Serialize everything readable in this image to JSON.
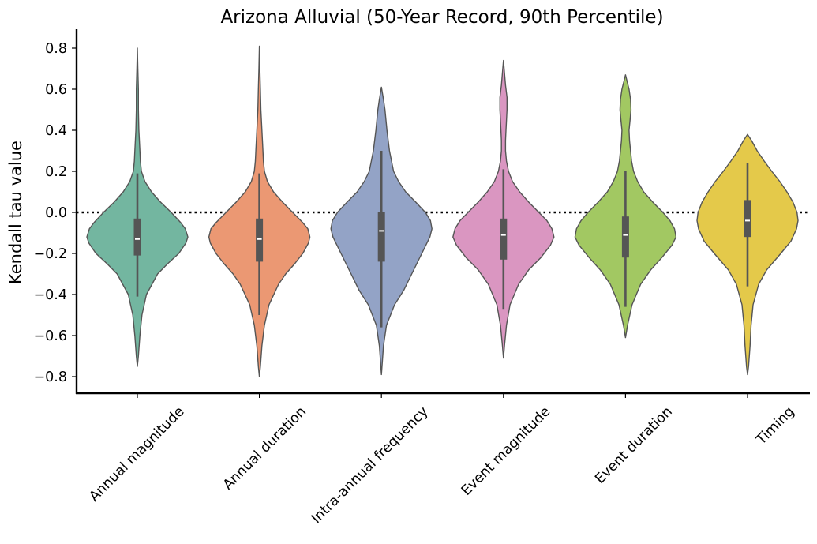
{
  "chart_data": {
    "type": "violin",
    "title": "Arizona Alluvial (50-Year Record, 90th Percentile)",
    "ylabel": "Kendall tau value",
    "xlabel": "",
    "ylim": [
      -0.88,
      0.89
    ],
    "yticks": [
      0.8,
      0.6,
      0.4,
      0.2,
      0.0,
      -0.2,
      -0.4,
      -0.6,
      -0.8
    ],
    "ytick_labels": [
      "0.8",
      "0.6",
      "0.4",
      "0.2",
      "0.0",
      "−0.2",
      "−0.4",
      "−0.6",
      "−0.8"
    ],
    "reference_line": {
      "y": 0.0,
      "style": "dotted"
    },
    "categories": [
      "Annual magnitude",
      "Annual duration",
      "Intra-annual frequency",
      "Event magnitude",
      "Event duration",
      "Timing"
    ],
    "colors": [
      "#73b6a0",
      "#eb9873",
      "#93a3c6",
      "#da96c1",
      "#a2c862",
      "#e4c94a"
    ],
    "box_color": "#555555",
    "violins": [
      {
        "min": -0.75,
        "max": 0.8,
        "whisker_low": -0.41,
        "q1": -0.21,
        "median": -0.13,
        "q3": -0.03,
        "whisker_high": 0.19,
        "profile": [
          [
            -0.75,
            0.0
          ],
          [
            -0.7,
            0.02
          ],
          [
            -0.6,
            0.05
          ],
          [
            -0.5,
            0.09
          ],
          [
            -0.4,
            0.18
          ],
          [
            -0.3,
            0.4
          ],
          [
            -0.25,
            0.6
          ],
          [
            -0.2,
            0.82
          ],
          [
            -0.15,
            0.96
          ],
          [
            -0.12,
            1.0
          ],
          [
            -0.08,
            0.95
          ],
          [
            -0.05,
            0.86
          ],
          [
            0.0,
            0.67
          ],
          [
            0.05,
            0.46
          ],
          [
            0.1,
            0.28
          ],
          [
            0.15,
            0.15
          ],
          [
            0.2,
            0.08
          ],
          [
            0.25,
            0.06
          ],
          [
            0.3,
            0.05
          ],
          [
            0.4,
            0.03
          ],
          [
            0.5,
            0.02
          ],
          [
            0.6,
            0.02
          ],
          [
            0.7,
            0.01
          ],
          [
            0.8,
            0.0
          ]
        ]
      },
      {
        "min": -0.8,
        "max": 0.81,
        "whisker_low": -0.5,
        "q1": -0.24,
        "median": -0.13,
        "q3": -0.03,
        "whisker_high": 0.19,
        "profile": [
          [
            -0.8,
            0.0
          ],
          [
            -0.75,
            0.02
          ],
          [
            -0.65,
            0.05
          ],
          [
            -0.55,
            0.1
          ],
          [
            -0.45,
            0.19
          ],
          [
            -0.35,
            0.38
          ],
          [
            -0.3,
            0.52
          ],
          [
            -0.25,
            0.7
          ],
          [
            -0.2,
            0.86
          ],
          [
            -0.15,
            0.97
          ],
          [
            -0.12,
            1.0
          ],
          [
            -0.08,
            0.96
          ],
          [
            -0.05,
            0.86
          ],
          [
            0.0,
            0.66
          ],
          [
            0.05,
            0.46
          ],
          [
            0.1,
            0.28
          ],
          [
            0.15,
            0.16
          ],
          [
            0.2,
            0.1
          ],
          [
            0.25,
            0.08
          ],
          [
            0.3,
            0.07
          ],
          [
            0.4,
            0.05
          ],
          [
            0.5,
            0.03
          ],
          [
            0.6,
            0.02
          ],
          [
            0.7,
            0.01
          ],
          [
            0.81,
            0.0
          ]
        ]
      },
      {
        "min": -0.79,
        "max": 0.61,
        "whisker_low": -0.56,
        "q1": -0.24,
        "median": -0.09,
        "q3": 0.0,
        "whisker_high": 0.3,
        "profile": [
          [
            -0.79,
            0.0
          ],
          [
            -0.72,
            0.02
          ],
          [
            -0.65,
            0.04
          ],
          [
            -0.55,
            0.1
          ],
          [
            -0.45,
            0.26
          ],
          [
            -0.38,
            0.44
          ],
          [
            -0.3,
            0.6
          ],
          [
            -0.2,
            0.8
          ],
          [
            -0.12,
            0.96
          ],
          [
            -0.08,
            1.0
          ],
          [
            -0.04,
            0.97
          ],
          [
            0.0,
            0.87
          ],
          [
            0.05,
            0.68
          ],
          [
            0.1,
            0.48
          ],
          [
            0.15,
            0.34
          ],
          [
            0.2,
            0.24
          ],
          [
            0.3,
            0.16
          ],
          [
            0.4,
            0.11
          ],
          [
            0.5,
            0.07
          ],
          [
            0.55,
            0.04
          ],
          [
            0.61,
            0.0
          ]
        ]
      },
      {
        "min": -0.71,
        "max": 0.74,
        "whisker_low": -0.47,
        "q1": -0.23,
        "median": -0.11,
        "q3": -0.03,
        "whisker_high": 0.21,
        "profile": [
          [
            -0.71,
            0.0
          ],
          [
            -0.65,
            0.02
          ],
          [
            -0.55,
            0.06
          ],
          [
            -0.45,
            0.13
          ],
          [
            -0.35,
            0.3
          ],
          [
            -0.28,
            0.5
          ],
          [
            -0.22,
            0.74
          ],
          [
            -0.16,
            0.93
          ],
          [
            -0.12,
            1.0
          ],
          [
            -0.08,
            0.96
          ],
          [
            -0.04,
            0.86
          ],
          [
            0.0,
            0.7
          ],
          [
            0.05,
            0.5
          ],
          [
            0.1,
            0.32
          ],
          [
            0.15,
            0.18
          ],
          [
            0.2,
            0.1
          ],
          [
            0.25,
            0.06
          ],
          [
            0.3,
            0.04
          ],
          [
            0.35,
            0.04
          ],
          [
            0.4,
            0.05
          ],
          [
            0.5,
            0.07
          ],
          [
            0.56,
            0.07
          ],
          [
            0.62,
            0.04
          ],
          [
            0.68,
            0.02
          ],
          [
            0.74,
            0.0
          ]
        ]
      },
      {
        "min": -0.61,
        "max": 0.67,
        "whisker_low": -0.46,
        "q1": -0.22,
        "median": -0.11,
        "q3": -0.02,
        "whisker_high": 0.2,
        "profile": [
          [
            -0.61,
            0.0
          ],
          [
            -0.55,
            0.04
          ],
          [
            -0.45,
            0.13
          ],
          [
            -0.35,
            0.3
          ],
          [
            -0.28,
            0.5
          ],
          [
            -0.22,
            0.72
          ],
          [
            -0.16,
            0.92
          ],
          [
            -0.12,
            1.0
          ],
          [
            -0.08,
            0.97
          ],
          [
            -0.04,
            0.88
          ],
          [
            0.0,
            0.74
          ],
          [
            0.05,
            0.54
          ],
          [
            0.1,
            0.36
          ],
          [
            0.15,
            0.24
          ],
          [
            0.2,
            0.16
          ],
          [
            0.25,
            0.12
          ],
          [
            0.3,
            0.1
          ],
          [
            0.35,
            0.08
          ],
          [
            0.4,
            0.07
          ],
          [
            0.45,
            0.09
          ],
          [
            0.5,
            0.11
          ],
          [
            0.55,
            0.1
          ],
          [
            0.6,
            0.07
          ],
          [
            0.64,
            0.03
          ],
          [
            0.67,
            0.0
          ]
        ]
      },
      {
        "min": -0.79,
        "max": 0.38,
        "whisker_low": -0.36,
        "q1": -0.12,
        "median": -0.04,
        "q3": 0.06,
        "whisker_high": 0.24,
        "profile": [
          [
            -0.79,
            0.0
          ],
          [
            -0.75,
            0.02
          ],
          [
            -0.65,
            0.05
          ],
          [
            -0.55,
            0.07
          ],
          [
            -0.45,
            0.11
          ],
          [
            -0.35,
            0.22
          ],
          [
            -0.28,
            0.38
          ],
          [
            -0.2,
            0.66
          ],
          [
            -0.14,
            0.86
          ],
          [
            -0.08,
            0.97
          ],
          [
            -0.04,
            1.0
          ],
          [
            0.0,
            0.98
          ],
          [
            0.05,
            0.9
          ],
          [
            0.1,
            0.78
          ],
          [
            0.15,
            0.64
          ],
          [
            0.2,
            0.48
          ],
          [
            0.25,
            0.33
          ],
          [
            0.3,
            0.19
          ],
          [
            0.35,
            0.08
          ],
          [
            0.38,
            0.0
          ]
        ]
      }
    ]
  }
}
